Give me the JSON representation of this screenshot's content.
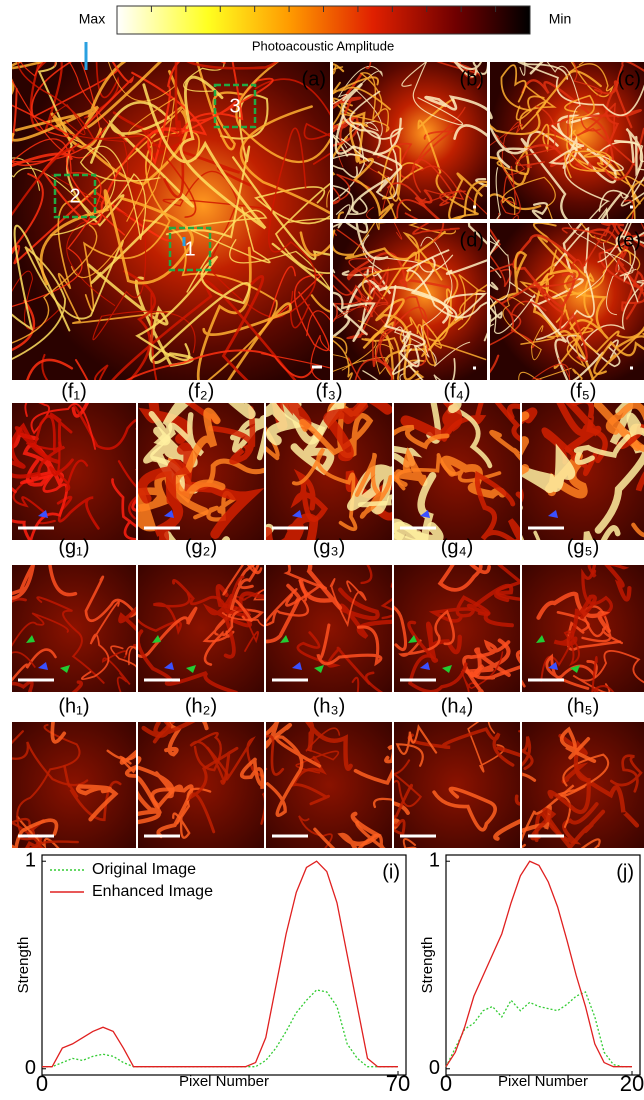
{
  "colorbar": {
    "max": "Max",
    "min": "Min",
    "label": "Photoacoustic Amplitude"
  },
  "panels": {
    "a": "(a)",
    "b": "(b)",
    "c": "(c)",
    "d": "(d)",
    "e": "(e)"
  },
  "regions": [
    "1",
    "2",
    "3"
  ],
  "rows": [
    {
      "labels": [
        "(f₁)",
        "(f₂)",
        "(f₃)",
        "(f₄)",
        "(f₅)"
      ]
    },
    {
      "labels": [
        "(g₁)",
        "(g₂)",
        "(g₃)",
        "(g₄)",
        "(g₅)"
      ]
    },
    {
      "labels": [
        "(h₁)",
        "(h₂)",
        "(h₃)",
        "(h₄)",
        "(h₅)"
      ]
    }
  ],
  "chart_data": [
    {
      "type": "line",
      "annotation": "(i)",
      "x_label": "Pixel Number",
      "y_label": "Strength",
      "x": [
        0,
        2,
        4,
        6,
        8,
        10,
        12,
        14,
        16,
        18,
        20,
        22,
        24,
        26,
        28,
        30,
        32,
        34,
        36,
        38,
        40,
        42,
        44,
        46,
        48,
        50,
        52,
        54,
        56,
        58,
        60,
        62,
        64,
        66,
        68,
        70
      ],
      "xlim": [
        0,
        70
      ],
      "ylim": [
        -0.03,
        1.03
      ],
      "xticks": [
        0,
        70
      ],
      "yticks": [
        0,
        1
      ],
      "legend": "upper-left",
      "series": [
        {
          "name": "Original Image",
          "color": "#33cc33",
          "dash": true,
          "values": [
            0.01,
            0.01,
            0.03,
            0.05,
            0.04,
            0.06,
            0.07,
            0.06,
            0.03,
            0.01,
            0.01,
            0.01,
            0.01,
            0.01,
            0.01,
            0.01,
            0.01,
            0.01,
            0.01,
            0.01,
            0.01,
            0.01,
            0.04,
            0.1,
            0.18,
            0.27,
            0.33,
            0.38,
            0.37,
            0.3,
            0.12,
            0.05,
            0.01,
            0.01,
            0.01,
            0.01
          ]
        },
        {
          "name": "Enhanced Image",
          "color": "#e02020",
          "dash": false,
          "values": [
            0.01,
            0.01,
            0.1,
            0.12,
            0.15,
            0.18,
            0.2,
            0.18,
            0.1,
            0.01,
            0.01,
            0.01,
            0.01,
            0.01,
            0.01,
            0.01,
            0.01,
            0.01,
            0.01,
            0.01,
            0.01,
            0.03,
            0.15,
            0.4,
            0.65,
            0.85,
            0.97,
            1.0,
            0.95,
            0.8,
            0.55,
            0.3,
            0.05,
            0.01,
            0.01,
            0.01
          ]
        }
      ]
    },
    {
      "type": "line",
      "annotation": "(j)",
      "x_label": "Pixel Number",
      "y_label": "Strength",
      "x": [
        0,
        1,
        2,
        3,
        4,
        5,
        6,
        7,
        8,
        9,
        10,
        11,
        12,
        13,
        14,
        15,
        16,
        17,
        18,
        19,
        20
      ],
      "xlim": [
        0,
        20
      ],
      "ylim": [
        -0.03,
        1.03
      ],
      "xticks": [
        0,
        20
      ],
      "yticks": [
        0,
        1
      ],
      "series": [
        {
          "name": "Original Image",
          "color": "#33cc33",
          "dash": true,
          "values": [
            0.01,
            0.1,
            0.19,
            0.22,
            0.28,
            0.3,
            0.25,
            0.33,
            0.28,
            0.32,
            0.3,
            0.29,
            0.28,
            0.31,
            0.35,
            0.37,
            0.25,
            0.08,
            0.02,
            0.01,
            0.01
          ]
        },
        {
          "name": "Enhanced Image",
          "color": "#e02020",
          "dash": false,
          "values": [
            0.01,
            0.08,
            0.2,
            0.35,
            0.45,
            0.55,
            0.65,
            0.8,
            0.93,
            1.0,
            0.98,
            0.9,
            0.78,
            0.62,
            0.45,
            0.3,
            0.12,
            0.03,
            0.01,
            0.01,
            0.01
          ]
        }
      ]
    }
  ]
}
